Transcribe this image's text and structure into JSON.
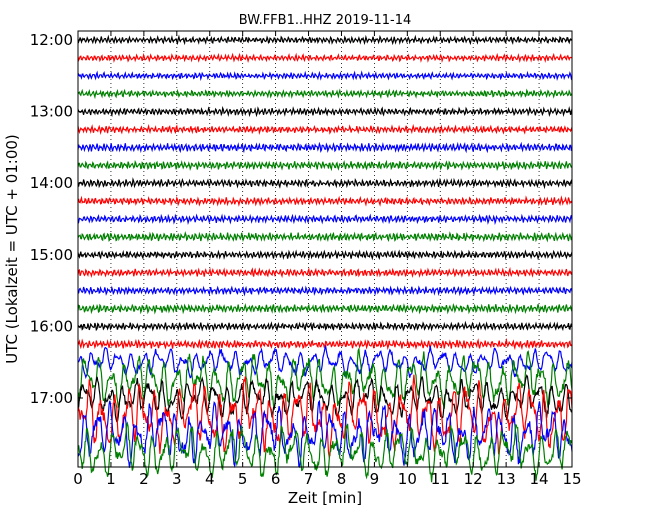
{
  "chart_data": {
    "type": "line",
    "subtype": "seismogram-helicorder",
    "title": "BW.FFB1..HHZ 2019-11-14",
    "xlabel": "Zeit  [min]",
    "ylabel": "UTC (Lokalzeit = UTC + 01:00)",
    "xlim": [
      0,
      15
    ],
    "x_ticks": [
      "0",
      "1",
      "2",
      "3",
      "4",
      "5",
      "6",
      "7",
      "8",
      "9",
      "10",
      "11",
      "12",
      "13",
      "14",
      "15"
    ],
    "y_ticks": [
      "12:00",
      "13:00",
      "14:00",
      "15:00",
      "16:00",
      "17:00"
    ],
    "minutes_per_trace": 15,
    "grid": "vertical dotted lines at each minute",
    "trace_colors": [
      "#000000",
      "#ff0000",
      "#0000ff",
      "#008000"
    ],
    "traces": [
      {
        "start": "12:00",
        "amplitude": 0.16
      },
      {
        "start": "12:15",
        "amplitude": 0.15
      },
      {
        "start": "12:30",
        "amplitude": 0.15
      },
      {
        "start": "12:45",
        "amplitude": 0.16
      },
      {
        "start": "13:00",
        "amplitude": 0.17
      },
      {
        "start": "13:15",
        "amplitude": 0.17
      },
      {
        "start": "13:30",
        "amplitude": 0.2
      },
      {
        "start": "13:45",
        "amplitude": 0.2
      },
      {
        "start": "14:00",
        "amplitude": 0.18
      },
      {
        "start": "14:15",
        "amplitude": 0.18
      },
      {
        "start": "14:30",
        "amplitude": 0.18
      },
      {
        "start": "14:45",
        "amplitude": 0.2
      },
      {
        "start": "15:00",
        "amplitude": 0.18
      },
      {
        "start": "15:15",
        "amplitude": 0.18
      },
      {
        "start": "15:30",
        "amplitude": 0.18
      },
      {
        "start": "15:45",
        "amplitude": 0.2
      },
      {
        "start": "16:00",
        "amplitude": 0.18
      },
      {
        "start": "16:15",
        "amplitude": 0.2
      },
      {
        "start": "16:30",
        "amplitude": 0.75
      },
      {
        "start": "16:45",
        "amplitude": 1.4
      },
      {
        "start": "17:00",
        "amplitude": 1.1
      },
      {
        "start": "17:15",
        "amplitude": 1.9
      },
      {
        "start": "17:30",
        "amplitude": 1.6
      },
      {
        "start": "17:45",
        "amplitude": 1.4
      }
    ]
  }
}
